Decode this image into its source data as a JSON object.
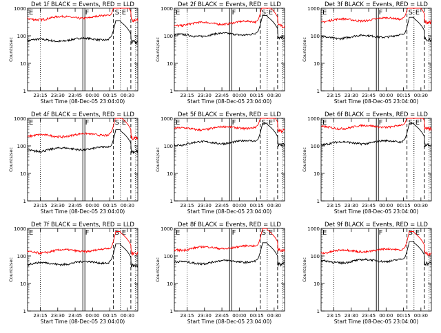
{
  "common": {
    "ylabel": "Counts/sec",
    "xlabel": "Start Time (08-Dec-05 23:04:00)",
    "x_tick_labels": [
      "23:15",
      "23:30",
      "23:45",
      "00:00",
      "00:15",
      "00:30"
    ],
    "y_tick_labels": [
      "1",
      "10",
      "100",
      "1000"
    ],
    "y_scale": "log",
    "ylim": [
      1,
      1000
    ],
    "xlim_minutes_from_start": [
      0,
      95
    ],
    "x_ticks_minutes_from_start": [
      11,
      26,
      41,
      56,
      71,
      86
    ],
    "colors": {
      "events": "#000000",
      "lld": "#ff0000",
      "axes": "#000000"
    },
    "markers": [
      {
        "label": "E",
        "minute": 0,
        "style": "dotted"
      },
      {
        "label": "F",
        "minute": 48.5,
        "style": "solid"
      },
      {
        "label": "S",
        "minute": 74,
        "style": "dashed"
      },
      {
        "label": "E",
        "minute": 80,
        "style": "dotted"
      },
      {
        "label": "",
        "minute": 89,
        "style": "dashed"
      }
    ],
    "dotted_lines_minutes": [
      11,
      80,
      93
    ]
  },
  "chart_data": [
    {
      "type": "line",
      "title": "Det 1f BLACK = Events, RED = LLD",
      "series": [
        {
          "name": "Events",
          "color": "#000000",
          "base": 65
        },
        {
          "name": "LLD",
          "color": "#ff0000",
          "base": 420
        }
      ]
    },
    {
      "type": "line",
      "title": "Det 2f BLACK = Events, RED = LLD",
      "series": [
        {
          "name": "Events",
          "color": "#000000",
          "base": 100
        },
        {
          "name": "LLD",
          "color": "#ff0000",
          "base": 260
        }
      ]
    },
    {
      "type": "line",
      "title": "Det 3f BLACK = Events, RED = LLD",
      "series": [
        {
          "name": "Events",
          "color": "#000000",
          "base": 85
        },
        {
          "name": "LLD",
          "color": "#ff0000",
          "base": 350
        }
      ]
    },
    {
      "type": "line",
      "title": "Det 4f BLACK = Events, RED = LLD",
      "series": [
        {
          "name": "Events",
          "color": "#000000",
          "base": 70
        },
        {
          "name": "LLD",
          "color": "#ff0000",
          "base": 220
        }
      ]
    },
    {
      "type": "line",
      "title": "Det 5f BLACK = Events, RED = LLD",
      "series": [
        {
          "name": "Events",
          "color": "#000000",
          "base": 120
        },
        {
          "name": "LLD",
          "color": "#ff0000",
          "base": 400
        }
      ]
    },
    {
      "type": "line",
      "title": "Det 6f BLACK = Events, RED = LLD",
      "series": [
        {
          "name": "Events",
          "color": "#000000",
          "base": 120
        },
        {
          "name": "LLD",
          "color": "#ff0000",
          "base": 450
        }
      ]
    },
    {
      "type": "line",
      "title": "Det 7f BLACK = Events, RED = LLD",
      "series": [
        {
          "name": "Events",
          "color": "#000000",
          "base": 50
        },
        {
          "name": "LLD",
          "color": "#ff0000",
          "base": 140
        }
      ]
    },
    {
      "type": "line",
      "title": "Det 8f BLACK = Events, RED = LLD",
      "series": [
        {
          "name": "Events",
          "color": "#000000",
          "base": 55
        },
        {
          "name": "LLD",
          "color": "#ff0000",
          "base": 180
        }
      ]
    },
    {
      "type": "line",
      "title": "Det 9f BLACK = Events, RED = LLD",
      "series": [
        {
          "name": "Events",
          "color": "#000000",
          "base": 60
        },
        {
          "name": "LLD",
          "color": "#ff0000",
          "base": 140
        }
      ]
    }
  ]
}
